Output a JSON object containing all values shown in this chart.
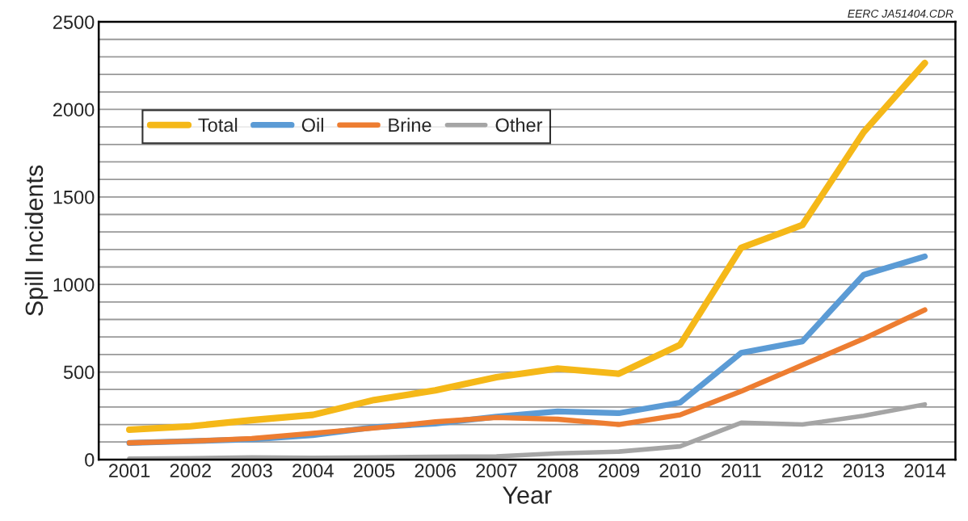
{
  "chart_data": {
    "type": "line",
    "xlabel": "Year",
    "ylabel": "Spill Incidents",
    "annotations": [
      "EERC JA51404.CDR"
    ],
    "categories": [
      "2001",
      "2002",
      "2003",
      "2004",
      "2005",
      "2006",
      "2007",
      "2008",
      "2009",
      "2010",
      "2011",
      "2012",
      "2013",
      "2014"
    ],
    "series": [
      {
        "name": "Total",
        "color": "#f5b818",
        "values": [
          170,
          190,
          225,
          255,
          340,
          395,
          470,
          520,
          490,
          655,
          1210,
          1340,
          1870,
          2265
        ]
      },
      {
        "name": "Oil",
        "color": "#5b9bd5",
        "values": [
          95,
          105,
          115,
          140,
          185,
          205,
          245,
          275,
          265,
          325,
          610,
          675,
          1055,
          1160
        ]
      },
      {
        "name": "Brine",
        "color": "#ed7d31",
        "values": [
          95,
          105,
          120,
          150,
          180,
          215,
          240,
          230,
          200,
          255,
          390,
          540,
          690,
          855
        ]
      },
      {
        "name": "Other",
        "color": "#a5a5a5",
        "values": [
          5,
          8,
          12,
          10,
          12,
          15,
          18,
          35,
          45,
          75,
          210,
          200,
          250,
          315
        ]
      }
    ],
    "ylim": [
      0,
      2500
    ],
    "yticks": [
      0,
      {
        "value": 100,
        "label": null
      },
      {
        "value": 200,
        "label": null
      },
      {
        "value": 300,
        "label": null
      },
      {
        "value": 400,
        "label": null
      },
      500,
      {
        "value": 600,
        "label": null
      },
      {
        "value": 700,
        "label": null
      },
      {
        "value": 800,
        "label": null
      },
      {
        "value": 900,
        "label": null
      },
      1000,
      {
        "value": 1100,
        "label": null
      },
      {
        "value": 1200,
        "label": null
      },
      {
        "value": 1300,
        "label": null
      },
      {
        "value": 1400,
        "label": null
      },
      1500,
      {
        "value": 1600,
        "label": null
      },
      {
        "value": 1700,
        "label": null
      },
      {
        "value": 1800,
        "label": null
      },
      {
        "value": 1900,
        "label": null
      },
      2000,
      {
        "value": 2100,
        "label": null
      },
      {
        "value": 2200,
        "label": null
      },
      {
        "value": 2300,
        "label": null
      },
      {
        "value": 2400,
        "label": null
      },
      2500
    ],
    "grid": "y",
    "legend": "top left",
    "marker": "none",
    "line_style": "solid"
  }
}
